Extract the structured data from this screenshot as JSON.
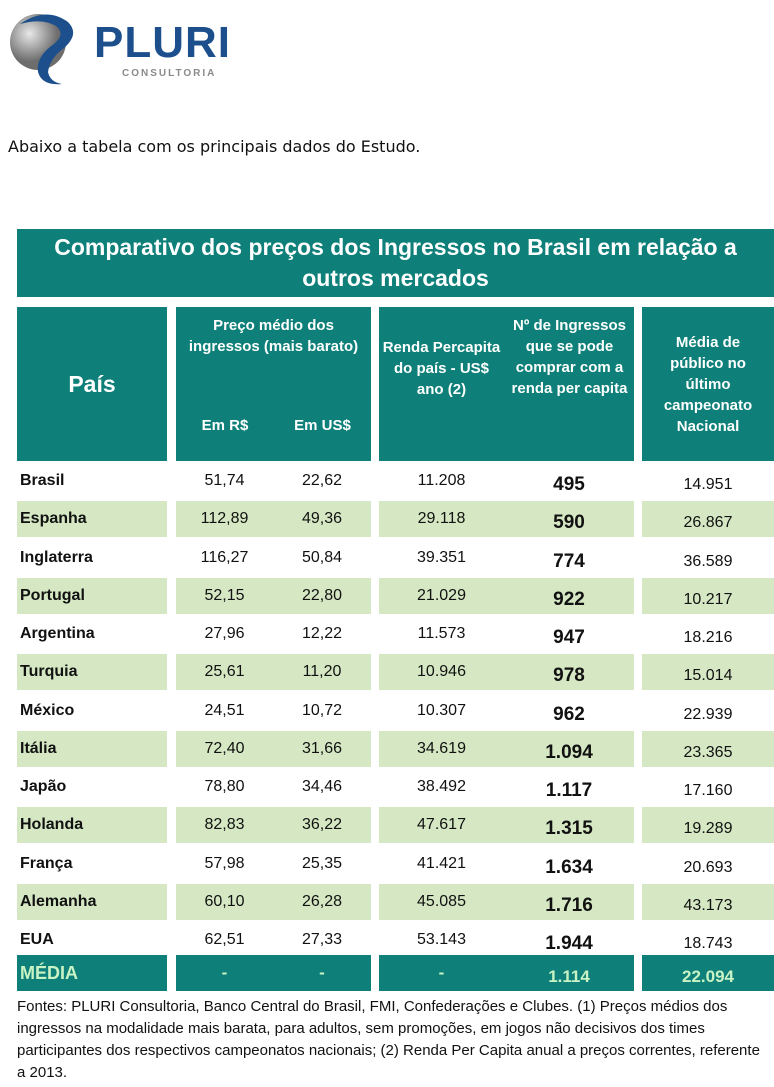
{
  "logo": {
    "name": "PLURI",
    "sub": "CONSULTORIA"
  },
  "intro": "Abaixo a tabela com os principais dados do Estudo.",
  "table": {
    "title": "Comparativo dos preços dos Ingressos no Brasil em relação a outros mercados",
    "headers": {
      "pais": "País",
      "preco": "Preço médio dos ingressos (mais barato)",
      "em_rs": "Em R$",
      "em_us": "Em US$",
      "renda": "Renda Percapita do país - US$ ano (2)",
      "ingressos": "Nº de Ingressos que se pode comprar com a renda per capita",
      "media": "Média de público no último campeonato Nacional"
    },
    "rows": [
      [
        "Brasil",
        "51,74",
        "22,62",
        "11.208",
        "495",
        "14.951"
      ],
      [
        "Espanha",
        "112,89",
        "49,36",
        "29.118",
        "590",
        "26.867"
      ],
      [
        "Inglaterra",
        "116,27",
        "50,84",
        "39.351",
        "774",
        "36.589"
      ],
      [
        "Portugal",
        "52,15",
        "22,80",
        "21.029",
        "922",
        "10.217"
      ],
      [
        "Argentina",
        "27,96",
        "12,22",
        "11.573",
        "947",
        "18.216"
      ],
      [
        "Turquia",
        "25,61",
        "11,20",
        "10.946",
        "978",
        "15.014"
      ],
      [
        "México",
        "24,51",
        "10,72",
        "10.307",
        "962",
        "22.939"
      ],
      [
        "Itália",
        "72,40",
        "31,66",
        "34.619",
        "1.094",
        "23.365"
      ],
      [
        "Japão",
        "78,80",
        "34,46",
        "38.492",
        "1.117",
        "17.160"
      ],
      [
        "Holanda",
        "82,83",
        "36,22",
        "47.617",
        "1.315",
        "19.289"
      ],
      [
        "França",
        "57,98",
        "25,35",
        "41.421",
        "1.634",
        "20.693"
      ],
      [
        "Alemanha",
        "60,10",
        "26,28",
        "45.085",
        "1.716",
        "43.173"
      ],
      [
        "EUA",
        "62,51",
        "27,33",
        "53.143",
        "1.944",
        "18.743"
      ]
    ],
    "green_rows": [
      1,
      3,
      5,
      7,
      9,
      11
    ],
    "average": [
      "MÉDIA",
      "-",
      "-",
      "-",
      "1.114",
      "22.094"
    ]
  },
  "footnote": "Fontes: PLURI Consultoria, Banco Central do Brasil, FMI, Confederações e Clubes. (1) Preços médios dos ingressos na modalidade mais barata, para adultos, sem promoções, em jogos não decisivos dos times participantes dos respectivos campeonatos nacionais; (2) Renda Per Capita anual a preços correntes, referente a 2013.",
  "colors": {
    "teal": "#0e8079",
    "green": "#d5e8c3",
    "logo_blue": "#1c4f8c"
  }
}
